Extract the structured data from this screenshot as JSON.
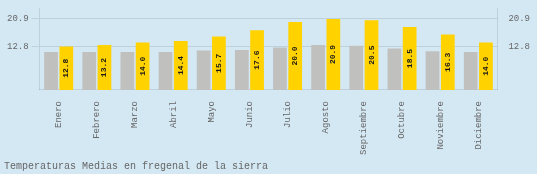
{
  "chart_data": {
    "type": "bar",
    "title": "Temperaturas Medias en fregenal de la sierra",
    "categories": [
      "Enero",
      "Febrero",
      "Marzo",
      "Abril",
      "Mayo",
      "Junio",
      "Julio",
      "Agosto",
      "Septiembre",
      "Octubre",
      "Noviembre",
      "Diciembre"
    ],
    "series": [
      {
        "color": "#C0C0BE",
        "values": [
          11.2,
          11.2,
          11.2,
          11.2,
          11.6,
          11.8,
          12.5,
          13.2,
          13.0,
          12.2,
          11.4,
          11.2
        ]
      },
      {
        "color": "#FFD200",
        "values": [
          12.8,
          13.2,
          14.0,
          14.4,
          15.7,
          17.6,
          20.0,
          20.9,
          20.5,
          18.5,
          16.3,
          14.0
        ],
        "data_labels": true,
        "value_labels": [
          "12.8",
          "13.2",
          "14.0",
          "14.4",
          "15.7",
          "17.6",
          "20.0",
          "20.9",
          "20.5",
          "18.5",
          "16.3",
          "14.0"
        ]
      }
    ],
    "ylim": [
      0,
      24.0
    ],
    "yticks": [
      12.8,
      20.9
    ],
    "y2lim": [
      0,
      24.0
    ],
    "y2ticks": [
      12.8,
      20.9
    ],
    "grid": true
  }
}
